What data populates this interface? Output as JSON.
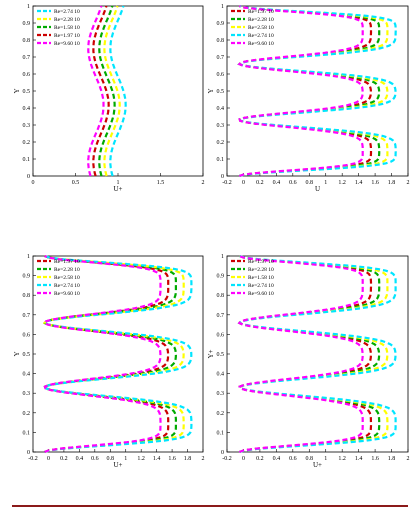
{
  "colors": {
    "axis": "#000000",
    "rule": "#8b1a1a"
  },
  "chart_data": [
    {
      "type": "line",
      "xlabel": "U+",
      "ylabel": "Y",
      "xlim": [
        0,
        2
      ],
      "ylim": [
        0,
        1
      ],
      "xticks": [
        {
          "v": 0,
          "t": "0"
        },
        {
          "v": 0.5,
          "t": "0.5"
        },
        {
          "v": 1,
          "t": "1"
        },
        {
          "v": 1.5,
          "t": "1.5"
        },
        {
          "v": 2,
          "t": "2"
        }
      ],
      "yticks": [
        "0",
        "0.1",
        "0.2",
        "0.3",
        "0.4",
        "0.5",
        "0.6",
        "0.7",
        "0.8",
        "0.9",
        "1"
      ],
      "wavy": true,
      "series": [
        {
          "name": "Re=2.74 10",
          "color": "#00e5ff",
          "center": 1.0,
          "amp": 0.1
        },
        {
          "name": "Re=2.28 10",
          "color": "#ffff00",
          "center": 0.93,
          "amp": 0.1
        },
        {
          "name": "Re=1.58 10",
          "color": "#00aa00",
          "center": 0.87,
          "amp": 0.1
        },
        {
          "name": "Re=1.97 10",
          "color": "#cc0000",
          "center": 0.8,
          "amp": 0.1
        },
        {
          "name": "Re=9.60 10",
          "color": "#ff00ff",
          "center": 0.74,
          "amp": 0.1
        }
      ]
    },
    {
      "type": "line",
      "xlabel": "U",
      "ylabel": "Y",
      "xlim": [
        -0.2,
        2
      ],
      "ylim": [
        0,
        1
      ],
      "xticks": [
        {
          "v": -0.2,
          "t": "-0.2"
        },
        {
          "v": 0,
          "t": "0"
        },
        {
          "v": 0.2,
          "t": "0.2"
        },
        {
          "v": 0.4,
          "t": "0.4"
        },
        {
          "v": 0.6,
          "t": "0.6"
        },
        {
          "v": 0.8,
          "t": "0.8"
        },
        {
          "v": 1,
          "t": "1"
        },
        {
          "v": 1.2,
          "t": "1.2"
        },
        {
          "v": 1.4,
          "t": "1.4"
        },
        {
          "v": 1.6,
          "t": "1.6"
        },
        {
          "v": 1.8,
          "t": "1.8"
        },
        {
          "v": 2,
          "t": "2"
        }
      ],
      "yticks": [
        "0",
        "0.1",
        "0.2",
        "0.3",
        "0.4",
        "0.5",
        "0.6",
        "0.7",
        "0.8",
        "0.9",
        "1"
      ],
      "wavy": false,
      "series": [
        {
          "name": "Re=1.97 10",
          "color": "#cc0000",
          "plateau": 1.55
        },
        {
          "name": "Re=2.28 10",
          "color": "#00aa00",
          "plateau": 1.65
        },
        {
          "name": "Re=2.58 10",
          "color": "#ffff00",
          "plateau": 1.75
        },
        {
          "name": "Re=2.74 10",
          "color": "#00e5ff",
          "plateau": 1.85
        },
        {
          "name": "Re=9.60 10",
          "color": "#ff00ff",
          "plateau": 1.45
        }
      ]
    },
    {
      "type": "line",
      "xlabel": "U+",
      "ylabel": "Y",
      "xlim": [
        -0.2,
        2
      ],
      "ylim": [
        0,
        1
      ],
      "xticks": [
        {
          "v": -0.2,
          "t": "-0.2"
        },
        {
          "v": 0,
          "t": "0"
        },
        {
          "v": 0.2,
          "t": "0.2"
        },
        {
          "v": 0.4,
          "t": "0.4"
        },
        {
          "v": 0.6,
          "t": "0.6"
        },
        {
          "v": 0.8,
          "t": "0.8"
        },
        {
          "v": 1,
          "t": "1"
        },
        {
          "v": 1.2,
          "t": "1.2"
        },
        {
          "v": 1.4,
          "t": "1.4"
        },
        {
          "v": 1.6,
          "t": "1.6"
        },
        {
          "v": 1.8,
          "t": "1.8"
        },
        {
          "v": 2,
          "t": "2"
        }
      ],
      "yticks": [
        "0",
        "0.1",
        "0.2",
        "0.3",
        "0.4",
        "0.5",
        "0.6",
        "0.7",
        "0.8",
        "0.9",
        "1"
      ],
      "wavy": false,
      "series": [
        {
          "name": "Re=1.97 10",
          "color": "#cc0000",
          "plateau": 1.55
        },
        {
          "name": "Re=2.28 10",
          "color": "#00aa00",
          "plateau": 1.65
        },
        {
          "name": "Re=2.58 10",
          "color": "#ffff00",
          "plateau": 1.75
        },
        {
          "name": "Re=2.74 10",
          "color": "#00e5ff",
          "plateau": 1.85
        },
        {
          "name": "Re=9.60 10",
          "color": "#ff00ff",
          "plateau": 1.45
        }
      ]
    },
    {
      "type": "line",
      "xlabel": "U+",
      "ylabel": "Y+",
      "xlim": [
        -0.2,
        2
      ],
      "ylim": [
        0,
        1
      ],
      "xticks": [
        {
          "v": -0.2,
          "t": "-0.2"
        },
        {
          "v": 0,
          "t": "0"
        },
        {
          "v": 0.2,
          "t": "0.2"
        },
        {
          "v": 0.4,
          "t": "0.4"
        },
        {
          "v": 0.6,
          "t": "0.6"
        },
        {
          "v": 0.8,
          "t": "0.8"
        },
        {
          "v": 1,
          "t": "1"
        },
        {
          "v": 1.2,
          "t": "1.2"
        },
        {
          "v": 1.4,
          "t": "1.4"
        },
        {
          "v": 1.6,
          "t": "1.6"
        },
        {
          "v": 1.8,
          "t": "1.8"
        },
        {
          "v": 2,
          "t": "2"
        }
      ],
      "yticks": [
        "0",
        "0.1",
        "0.2",
        "0.3",
        "0.4",
        "0.5",
        "0.6",
        "0.7",
        "0.8",
        "0.9",
        "1"
      ],
      "wavy": false,
      "series": [
        {
          "name": "Re=1.97 10",
          "color": "#cc0000",
          "plateau": 1.55
        },
        {
          "name": "Re=2.28 10",
          "color": "#00aa00",
          "plateau": 1.65
        },
        {
          "name": "Re=1.58 10",
          "color": "#ffff00",
          "plateau": 1.75
        },
        {
          "name": "Re=2.74 10",
          "color": "#00e5ff",
          "plateau": 1.85
        },
        {
          "name": "Re=9.60 10",
          "color": "#ff00ff",
          "plateau": 1.45
        }
      ]
    }
  ]
}
